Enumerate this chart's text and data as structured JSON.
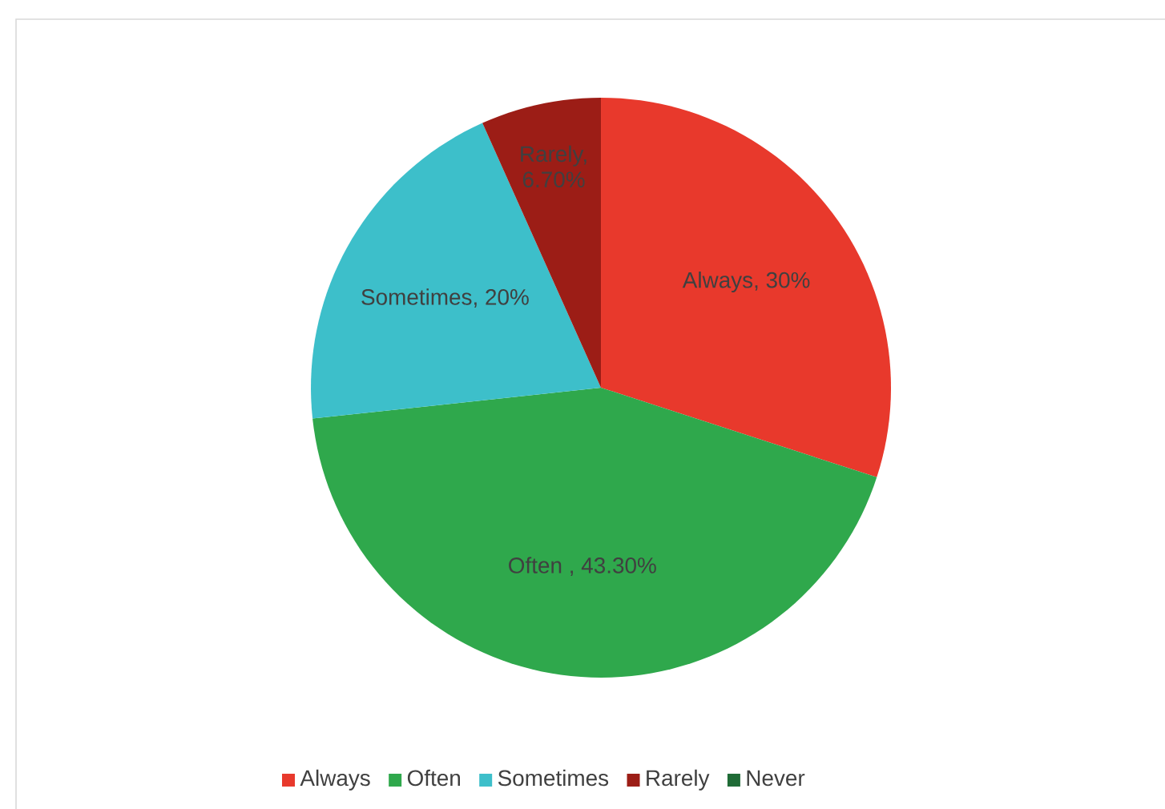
{
  "chart_data": {
    "type": "pie",
    "categories": [
      "Always",
      "Often",
      "Sometimes",
      "Rarely",
      "Never"
    ],
    "values": [
      30,
      43.3,
      20,
      6.7,
      0
    ],
    "colors": [
      "#e8392c",
      "#2fa84c",
      "#3dbfca",
      "#9c1d16",
      "#1f6b36"
    ],
    "value_labels": [
      "Always, 30%",
      "Often , 43.30%",
      "Sometimes, 20%",
      "Rarely, 6.70%",
      null
    ],
    "legend": "bottom"
  }
}
